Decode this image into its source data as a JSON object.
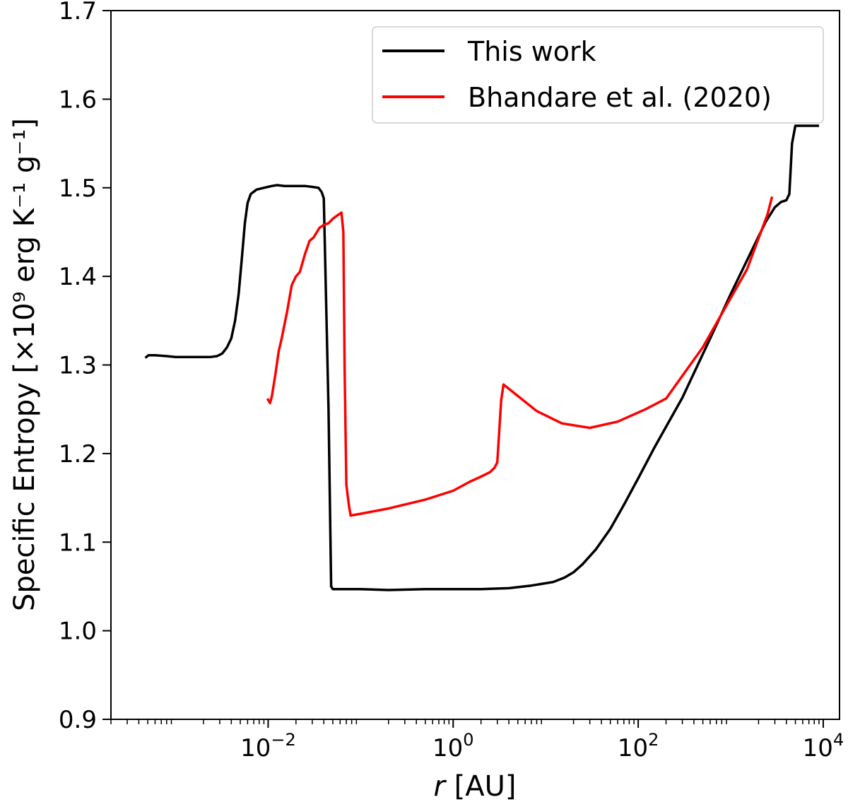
{
  "chart_data": {
    "type": "line",
    "xscale": "log",
    "xlim": [
      0.0002,
      15000
    ],
    "ylim": [
      0.9,
      1.7
    ],
    "xlabel": {
      "italic": "r",
      "rest": " [AU]"
    },
    "ylabel": "Specific Entropy [×10⁹ erg K⁻¹ g⁻¹]",
    "x_ticks": [
      {
        "value": 0.01,
        "base": "10",
        "exp": "−2"
      },
      {
        "value": 1,
        "base": "10",
        "exp": "0"
      },
      {
        "value": 100,
        "base": "10",
        "exp": "2"
      },
      {
        "value": 10000,
        "base": "10",
        "exp": "4"
      }
    ],
    "y_ticks": [
      0.9,
      1.0,
      1.1,
      1.2,
      1.3,
      1.4,
      1.5,
      1.6,
      1.7
    ],
    "legend_position": "top-right",
    "grid": false,
    "series": [
      {
        "name": "This work",
        "color": "#000000",
        "points": [
          [
            0.00047,
            1.308
          ],
          [
            0.00051,
            1.311
          ],
          [
            0.0006,
            1.311
          ],
          [
            0.0008,
            1.31
          ],
          [
            0.001,
            1.309
          ],
          [
            0.0013,
            1.309
          ],
          [
            0.0018,
            1.309
          ],
          [
            0.0024,
            1.309
          ],
          [
            0.0028,
            1.31
          ],
          [
            0.0032,
            1.313
          ],
          [
            0.0036,
            1.32
          ],
          [
            0.004,
            1.33
          ],
          [
            0.0044,
            1.35
          ],
          [
            0.0048,
            1.38
          ],
          [
            0.0052,
            1.42
          ],
          [
            0.0056,
            1.46
          ],
          [
            0.006,
            1.483
          ],
          [
            0.0065,
            1.493
          ],
          [
            0.0075,
            1.498
          ],
          [
            0.009,
            1.5
          ],
          [
            0.011,
            1.502
          ],
          [
            0.0125,
            1.503
          ],
          [
            0.015,
            1.502
          ],
          [
            0.02,
            1.502
          ],
          [
            0.025,
            1.502
          ],
          [
            0.03,
            1.501
          ],
          [
            0.035,
            1.5
          ],
          [
            0.038,
            1.495
          ],
          [
            0.04,
            1.488
          ],
          [
            0.045,
            1.25
          ],
          [
            0.048,
            1.05
          ],
          [
            0.05,
            1.047
          ],
          [
            0.06,
            1.047
          ],
          [
            0.1,
            1.047
          ],
          [
            0.2,
            1.046
          ],
          [
            0.5,
            1.047
          ],
          [
            1,
            1.047
          ],
          [
            2,
            1.047
          ],
          [
            4,
            1.048
          ],
          [
            7,
            1.051
          ],
          [
            12,
            1.055
          ],
          [
            16,
            1.06
          ],
          [
            20,
            1.066
          ],
          [
            25,
            1.075
          ],
          [
            35,
            1.092
          ],
          [
            50,
            1.115
          ],
          [
            70,
            1.142
          ],
          [
            100,
            1.172
          ],
          [
            150,
            1.207
          ],
          [
            300,
            1.263
          ],
          [
            600,
            1.33
          ],
          [
            1000,
            1.38
          ],
          [
            1600,
            1.424
          ],
          [
            2400,
            1.462
          ],
          [
            3000,
            1.478
          ],
          [
            3500,
            1.484
          ],
          [
            4000,
            1.486
          ],
          [
            4300,
            1.493
          ],
          [
            4600,
            1.55
          ],
          [
            5000,
            1.57
          ],
          [
            6000,
            1.57
          ],
          [
            9000,
            1.57
          ]
        ]
      },
      {
        "name": "Bhandare et al. (2020)",
        "color": "#ff0000",
        "points": [
          [
            0.0098,
            1.262
          ],
          [
            0.0101,
            1.26
          ],
          [
            0.0105,
            1.257
          ],
          [
            0.011,
            1.265
          ],
          [
            0.012,
            1.29
          ],
          [
            0.013,
            1.315
          ],
          [
            0.014,
            1.33
          ],
          [
            0.016,
            1.36
          ],
          [
            0.018,
            1.39
          ],
          [
            0.02,
            1.4
          ],
          [
            0.022,
            1.405
          ],
          [
            0.025,
            1.425
          ],
          [
            0.028,
            1.44
          ],
          [
            0.031,
            1.444
          ],
          [
            0.036,
            1.455
          ],
          [
            0.04,
            1.458
          ],
          [
            0.045,
            1.46
          ],
          [
            0.05,
            1.465
          ],
          [
            0.058,
            1.47
          ],
          [
            0.062,
            1.472
          ],
          [
            0.065,
            1.45
          ],
          [
            0.067,
            1.3
          ],
          [
            0.07,
            1.165
          ],
          [
            0.075,
            1.14
          ],
          [
            0.078,
            1.13
          ],
          [
            0.1,
            1.132
          ],
          [
            0.2,
            1.138
          ],
          [
            0.5,
            1.148
          ],
          [
            1,
            1.158
          ],
          [
            1.5,
            1.168
          ],
          [
            2,
            1.174
          ],
          [
            2.5,
            1.179
          ],
          [
            2.8,
            1.184
          ],
          [
            3.0,
            1.19
          ],
          [
            3.3,
            1.26
          ],
          [
            3.5,
            1.278
          ],
          [
            5,
            1.265
          ],
          [
            8,
            1.248
          ],
          [
            15,
            1.234
          ],
          [
            30,
            1.229
          ],
          [
            60,
            1.236
          ],
          [
            120,
            1.25
          ],
          [
            200,
            1.262
          ],
          [
            500,
            1.32
          ],
          [
            1500,
            1.408
          ],
          [
            2500,
            1.47
          ],
          [
            2800,
            1.49
          ]
        ]
      }
    ]
  }
}
